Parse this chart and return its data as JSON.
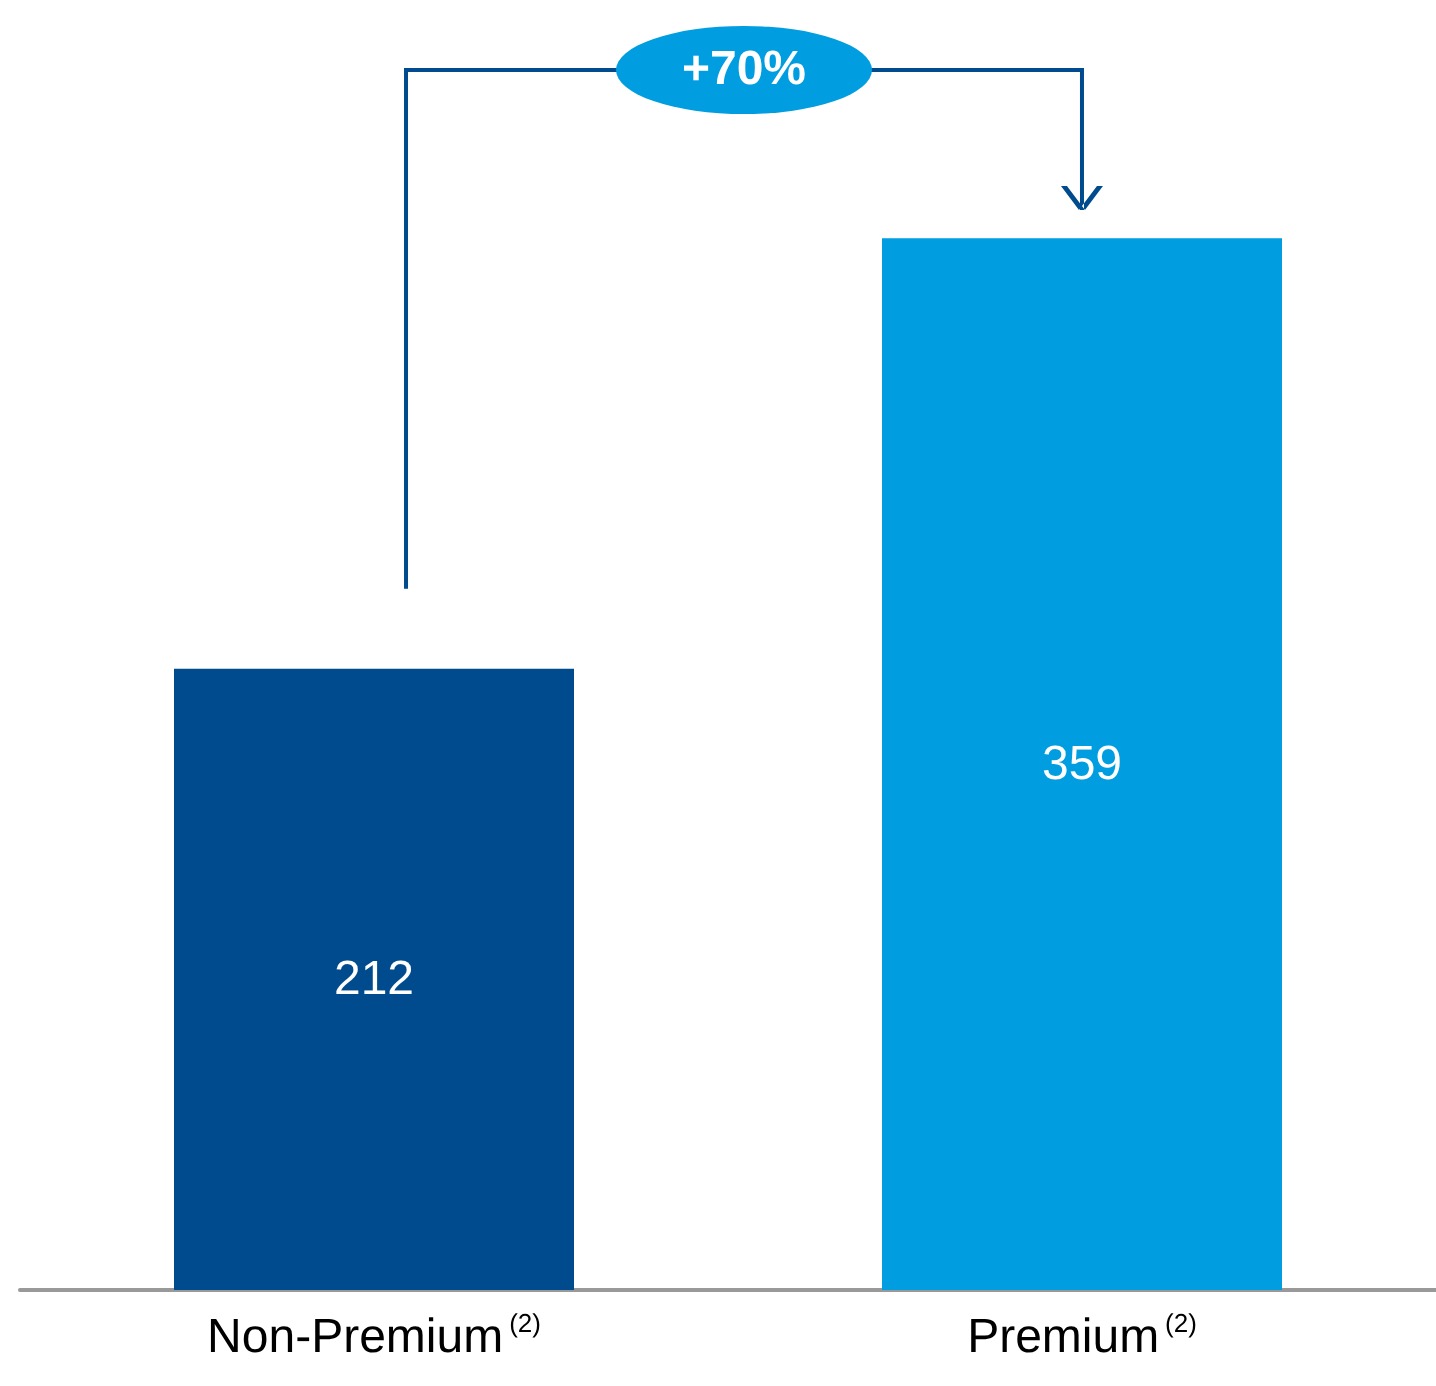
{
  "chart_data": {
    "type": "bar",
    "categories": [
      "Non-Premium$^{(2)}$",
      "Premium$^{(2)}$"
    ],
    "values": [
      212,
      359
    ],
    "colors": [
      "#004b8d",
      "#009de0"
    ],
    "data_labels": true,
    "annotations": [
      "+70%"
    ]
  }
}
